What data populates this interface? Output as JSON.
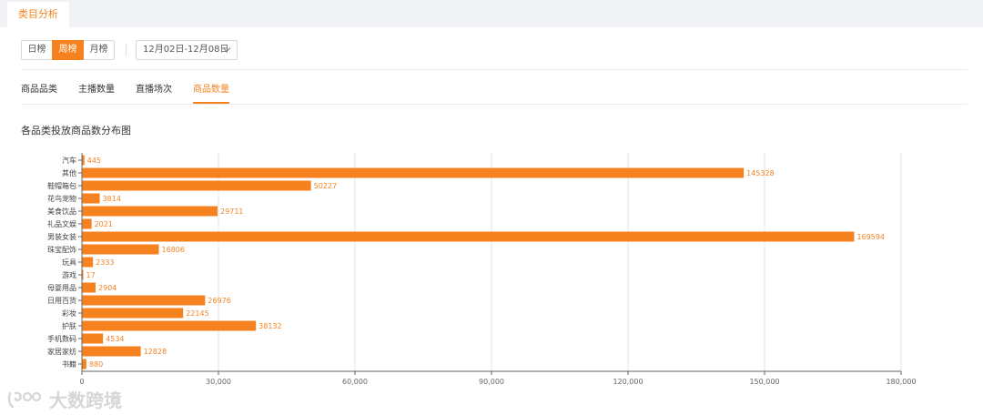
{
  "header": {
    "tab_label": "类目分析"
  },
  "period": {
    "buttons": [
      {
        "label": "日榜",
        "active": false
      },
      {
        "label": "周榜",
        "active": true
      },
      {
        "label": "月榜",
        "active": false
      }
    ],
    "date_range": "12月02日-12月08日"
  },
  "tabs": [
    {
      "label": "商品品类",
      "active": false
    },
    {
      "label": "主播数量",
      "active": false
    },
    {
      "label": "直播场次",
      "active": false
    },
    {
      "label": "商品数量",
      "active": true
    }
  ],
  "chart_title": "各品类投放商品数分布图",
  "chart_data": {
    "type": "bar",
    "orientation": "horizontal",
    "categories": [
      "汽车",
      "其他",
      "鞋帽箱包",
      "花鸟宠物",
      "美食饮品",
      "礼品文娱",
      "男装女装",
      "珠宝配饰",
      "玩具",
      "游戏",
      "母婴用品",
      "日用百货",
      "彩妆",
      "护肤",
      "手机数码",
      "家居家纺",
      "书籍"
    ],
    "values": [
      445,
      145328,
      50227,
      3814,
      29711,
      2021,
      169594,
      16806,
      2333,
      17,
      2904,
      26976,
      22145,
      38132,
      4534,
      12828,
      880
    ],
    "xlim": [
      0,
      180000
    ],
    "xticks": [
      0,
      30000,
      60000,
      90000,
      120000,
      150000,
      180000
    ],
    "xtick_labels": [
      "0",
      "30,000",
      "60,000",
      "90,000",
      "120,000",
      "150,000",
      "180,000"
    ],
    "bar_color": "#f5821f",
    "label_color": "#f5821f",
    "grid": true
  },
  "watermark": {
    "text": "大数跨境"
  }
}
